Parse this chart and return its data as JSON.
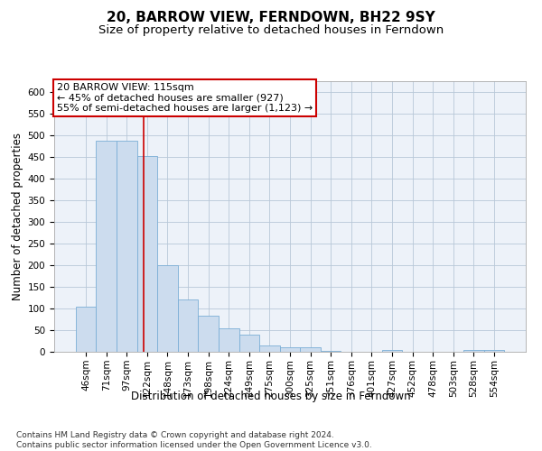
{
  "title": "20, BARROW VIEW, FERNDOWN, BH22 9SY",
  "subtitle": "Size of property relative to detached houses in Ferndown",
  "xlabel": "Distribution of detached houses by size in Ferndown",
  "ylabel": "Number of detached properties",
  "categories": [
    "46sqm",
    "71sqm",
    "97sqm",
    "122sqm",
    "148sqm",
    "173sqm",
    "198sqm",
    "224sqm",
    "249sqm",
    "275sqm",
    "300sqm",
    "325sqm",
    "351sqm",
    "376sqm",
    "401sqm",
    "427sqm",
    "452sqm",
    "478sqm",
    "503sqm",
    "528sqm",
    "554sqm"
  ],
  "values": [
    105,
    487,
    487,
    453,
    200,
    120,
    83,
    55,
    40,
    15,
    10,
    10,
    3,
    1,
    1,
    5,
    1,
    1,
    0,
    5,
    5
  ],
  "bar_color": "#ccdcee",
  "bar_edge_color": "#7baed6",
  "red_line_x": 2.82,
  "annotation_text": "20 BARROW VIEW: 115sqm\n← 45% of detached houses are smaller (927)\n55% of semi-detached houses are larger (1,123) →",
  "annotation_box_color": "#ffffff",
  "annotation_box_edge_color": "#cc0000",
  "ylim": [
    0,
    625
  ],
  "yticks": [
    0,
    50,
    100,
    150,
    200,
    250,
    300,
    350,
    400,
    450,
    500,
    550,
    600
  ],
  "footer": "Contains HM Land Registry data © Crown copyright and database right 2024.\nContains public sector information licensed under the Open Government Licence v3.0.",
  "bg_color": "#edf2f9",
  "grid_color": "#b8c8d8",
  "title_fontsize": 11,
  "subtitle_fontsize": 9.5,
  "axis_label_fontsize": 8.5,
  "tick_fontsize": 7.5,
  "footer_fontsize": 6.5,
  "annotation_fontsize": 8
}
